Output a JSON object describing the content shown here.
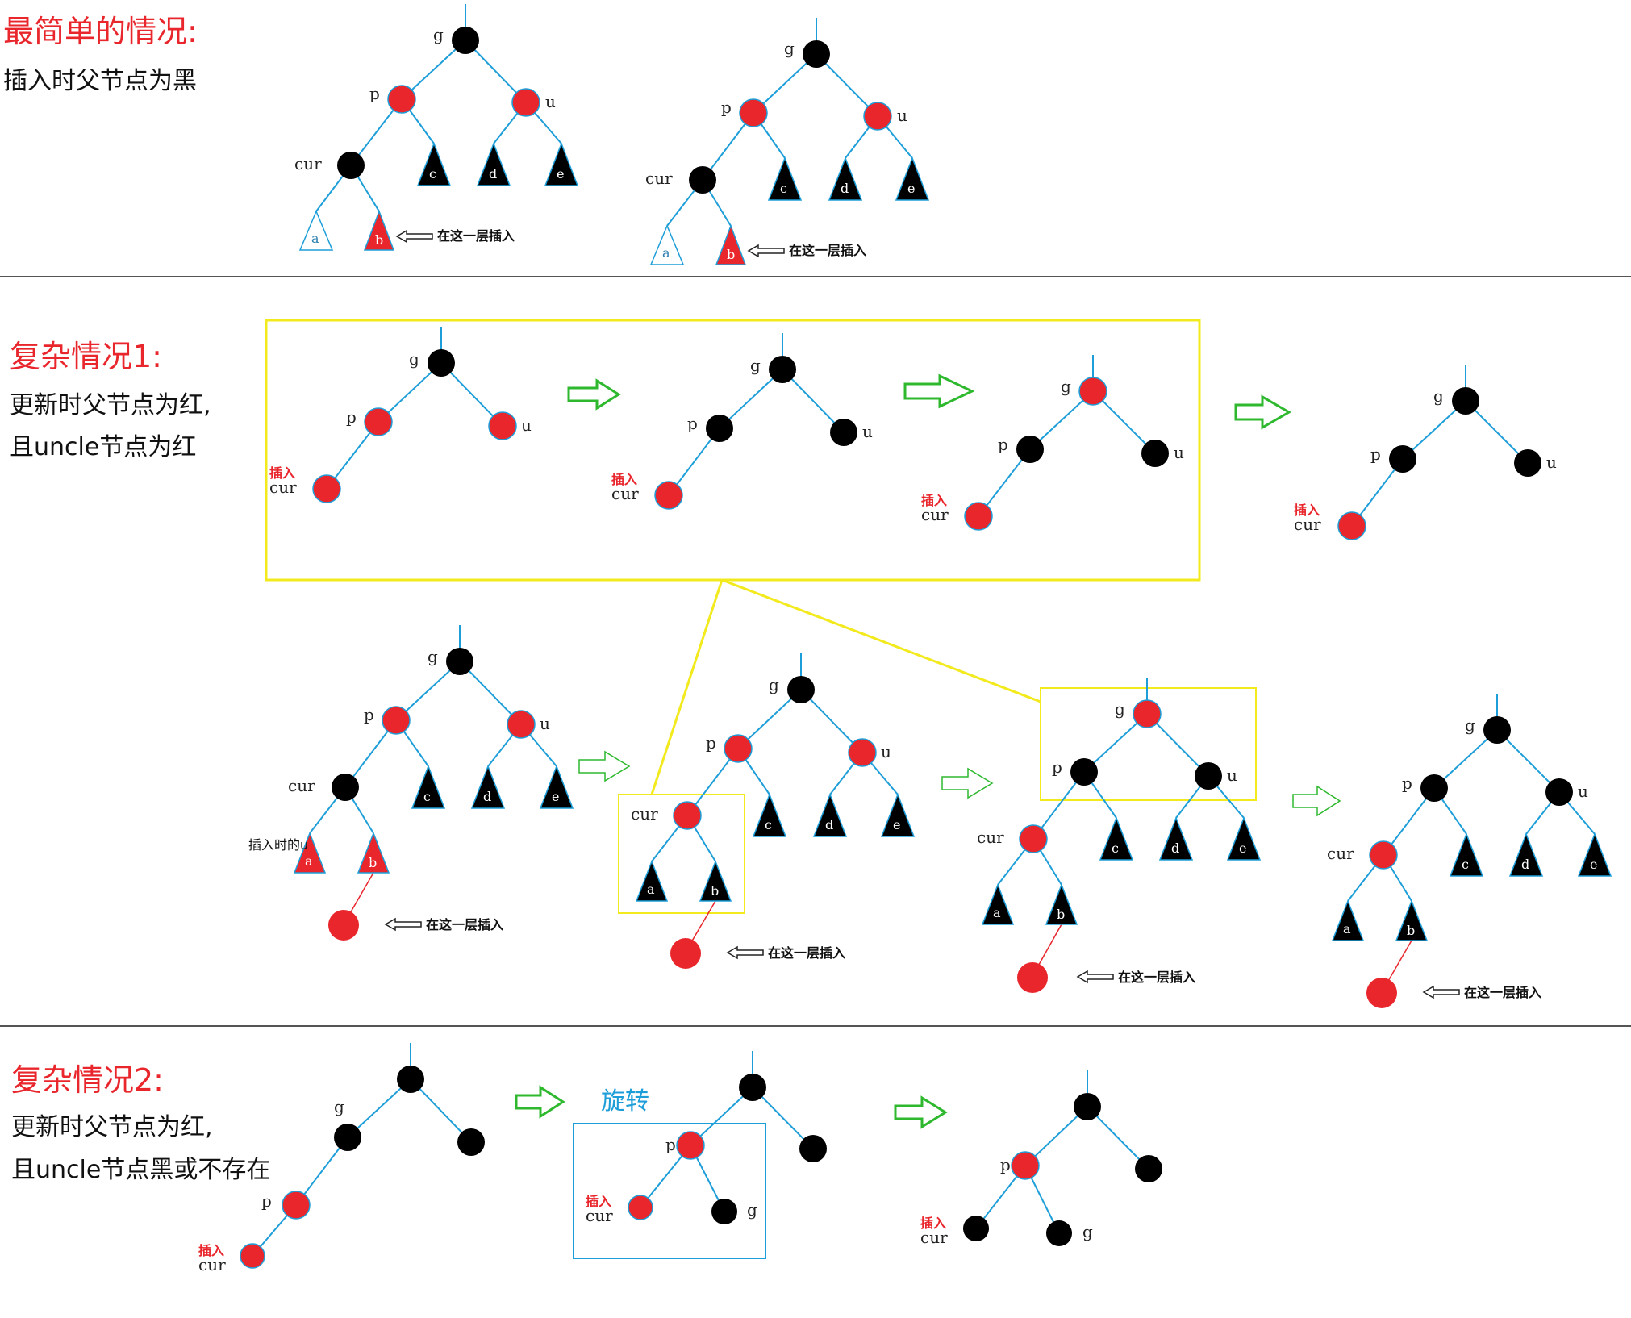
{
  "sections": {
    "simple": {
      "title": "最简单的情况:",
      "subtitle": "插入时父节点为黑"
    },
    "complex1": {
      "title": "复杂情况1:",
      "subtitle_line1": "更新时父节点为红,",
      "subtitle_line2": "且uncle节点为红"
    },
    "complex2": {
      "title": "复杂情况2:",
      "subtitle_line1": "更新时父节点为红,",
      "subtitle_line2": "且uncle节点黑或不存在"
    }
  },
  "labels": {
    "g": "g",
    "p": "p",
    "u": "u",
    "cur": "cur",
    "insert": "插入",
    "insert_layer": "在这一层插入",
    "insert_when_u": "插入时的u",
    "rotate": "旋转",
    "a": "a",
    "b": "b",
    "c": "c",
    "d": "d",
    "e": "e"
  },
  "colors": {
    "red_node": "#e8262c",
    "black_node": "#000000",
    "edge": "#1e9ed8",
    "yellow_box": "#f2ea1c",
    "blue_box": "#1e9ed8",
    "arrow_green": "#2eb82e",
    "title_red": "#e8262c",
    "rotate_blue": "#1e9ed8"
  }
}
